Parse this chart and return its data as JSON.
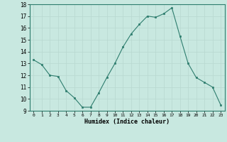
{
  "x": [
    0,
    1,
    2,
    3,
    4,
    5,
    6,
    7,
    8,
    9,
    10,
    11,
    12,
    13,
    14,
    15,
    16,
    17,
    18,
    19,
    20,
    21,
    22,
    23
  ],
  "y": [
    13.3,
    12.9,
    12.0,
    11.9,
    10.7,
    10.1,
    9.3,
    9.3,
    10.5,
    11.8,
    13.0,
    14.4,
    15.5,
    16.3,
    17.0,
    16.9,
    17.2,
    17.7,
    15.3,
    13.0,
    11.8,
    11.4,
    11.0,
    9.5
  ],
  "xlim": [
    -0.5,
    23.5
  ],
  "ylim": [
    9,
    18
  ],
  "yticks": [
    9,
    10,
    11,
    12,
    13,
    14,
    15,
    16,
    17,
    18
  ],
  "xticks": [
    0,
    1,
    2,
    3,
    4,
    5,
    6,
    7,
    8,
    9,
    10,
    11,
    12,
    13,
    14,
    15,
    16,
    17,
    18,
    19,
    20,
    21,
    22,
    23
  ],
  "xlabel": "Humidex (Indice chaleur)",
  "line_color": "#2E7D6E",
  "marker_color": "#2E7D6E",
  "bg_color": "#C8E8E0",
  "grid_color": "#B8D8D0",
  "spine_color": "#2E7D6E"
}
